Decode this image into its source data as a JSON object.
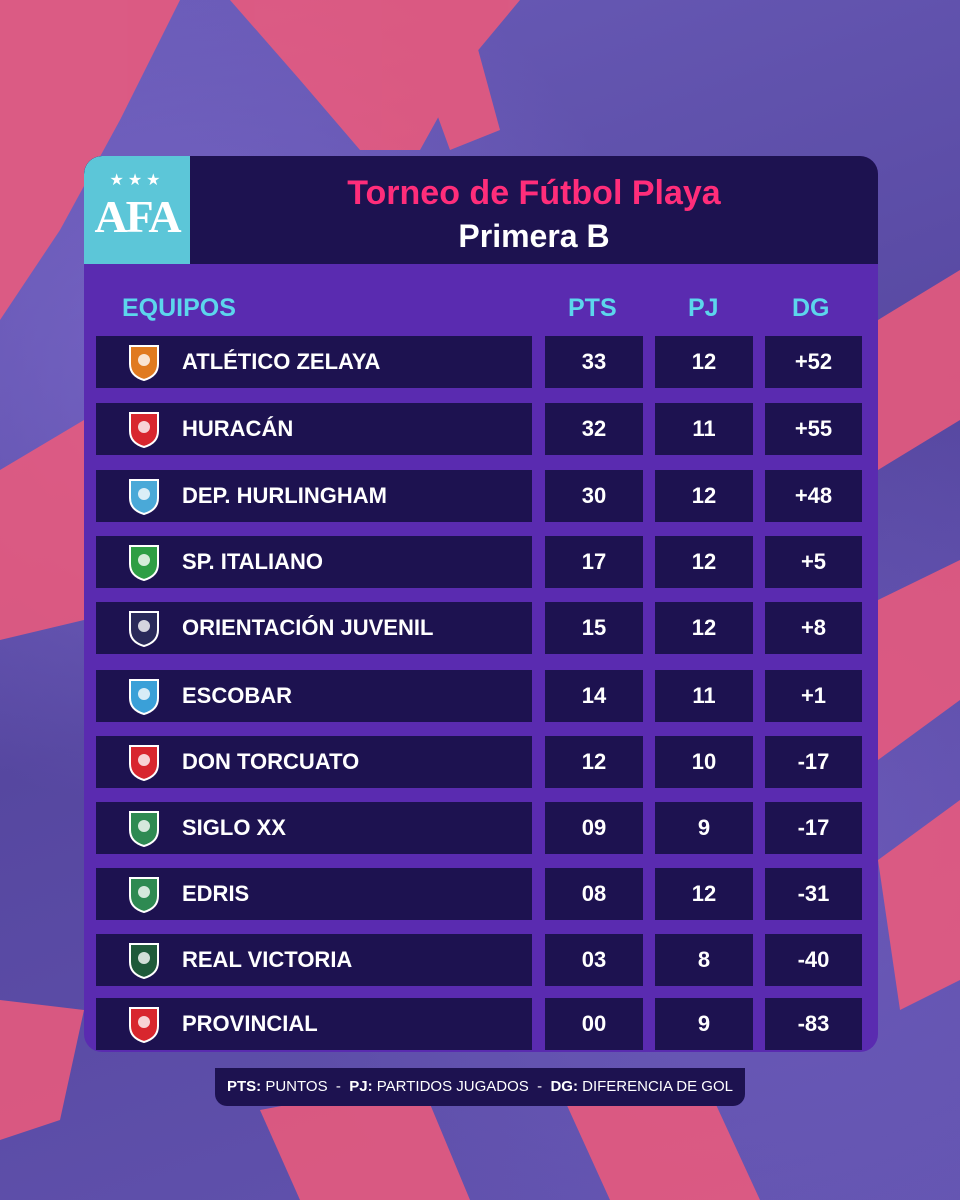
{
  "header": {
    "logo_text": "AFA",
    "title": "Torneo de Fútbol Playa",
    "subtitle": "Primera B"
  },
  "columns": {
    "team": "EQUIPOS",
    "pts": "PTS",
    "pj": "PJ",
    "dg": "DG"
  },
  "rows": [
    {
      "team": "ATLÉTICO ZELAYA",
      "pts": "33",
      "pj": "12",
      "dg": "+52",
      "crest": "zelaya-crest-icon"
    },
    {
      "team": "HURACÁN",
      "pts": "32",
      "pj": "11",
      "dg": "+55",
      "crest": "huracan-crest-icon"
    },
    {
      "team": "DEP. HURLINGHAM",
      "pts": "30",
      "pj": "12",
      "dg": "+48",
      "crest": "hurlingham-crest-icon"
    },
    {
      "team": "SP. ITALIANO",
      "pts": "17",
      "pj": "12",
      "dg": "+5",
      "crest": "italiano-crest-icon"
    },
    {
      "team": "ORIENTACIÓN JUVENIL",
      "pts": "15",
      "pj": "12",
      "dg": "+8",
      "crest": "orientacion-crest-icon"
    },
    {
      "team": "ESCOBAR",
      "pts": "14",
      "pj": "11",
      "dg": "+1",
      "crest": "escobar-crest-icon"
    },
    {
      "team": "DON TORCUATO",
      "pts": "12",
      "pj": "10",
      "dg": "-17",
      "crest": "don-torcuato-crest-icon"
    },
    {
      "team": "SIGLO XX",
      "pts": "09",
      "pj": "9",
      "dg": "-17",
      "crest": "siglo-xx-crest-icon"
    },
    {
      "team": "EDRIS",
      "pts": "08",
      "pj": "12",
      "dg": "-31",
      "crest": "edris-crest-icon"
    },
    {
      "team": "REAL VICTORIA",
      "pts": "03",
      "pj": "8",
      "dg": "-40",
      "crest": "real-victoria-crest-icon"
    },
    {
      "team": "PROVINCIAL",
      "pts": "00",
      "pj": "9",
      "dg": "-83",
      "crest": "provincial-crest-icon"
    }
  ],
  "legend": {
    "pts_key": "PTS:",
    "pts_text": "PUNTOS",
    "pj_key": "PJ:",
    "pj_text": "PARTIDOS JUGADOS",
    "dg_key": "DG:",
    "dg_text": "DIFERENCIA DE GOL",
    "separator": "-"
  },
  "colors": {
    "accent_pink": "#ff2d7a",
    "accent_cyan": "#5cd6ec",
    "panel": "#5a2bb0",
    "cell": "#1d1250"
  }
}
